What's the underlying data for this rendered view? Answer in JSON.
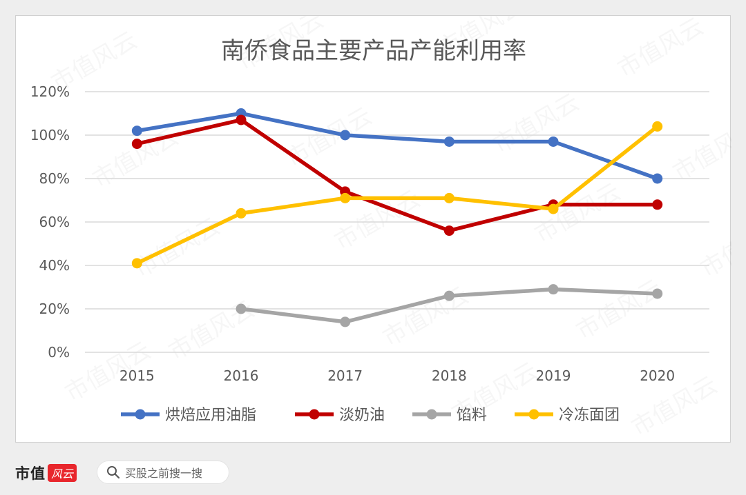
{
  "colors": {
    "series": [
      "#4472c4",
      "#c00000",
      "#a5a5a5",
      "#ffc000"
    ],
    "grid": "#d9d9d9",
    "text": "#595959"
  },
  "chart_data": {
    "type": "line",
    "title": "南侨食品主要产品产能利用率",
    "xlabel": "",
    "ylabel": "",
    "x": [
      "2015",
      "2016",
      "2017",
      "2018",
      "2019",
      "2020"
    ],
    "ylim": [
      0,
      120
    ],
    "yticks": [
      "0%",
      "20%",
      "40%",
      "60%",
      "80%",
      "100%",
      "120%"
    ],
    "grid": true,
    "legend_position": "bottom",
    "series": [
      {
        "name": "烘焙应用油脂",
        "values": [
          102,
          110,
          100,
          97,
          97,
          80
        ]
      },
      {
        "name": "淡奶油",
        "values": [
          96,
          107,
          74,
          56,
          68,
          68
        ]
      },
      {
        "name": "馅料",
        "values": [
          null,
          20,
          14,
          26,
          29,
          27
        ]
      },
      {
        "name": "冷冻面团",
        "values": [
          41,
          64,
          71,
          71,
          66,
          104
        ]
      }
    ]
  },
  "watermark": "市值风云",
  "footer": {
    "brand": "市值",
    "brand_logo": "风云",
    "search_placeholder": "买股之前搜一搜"
  }
}
